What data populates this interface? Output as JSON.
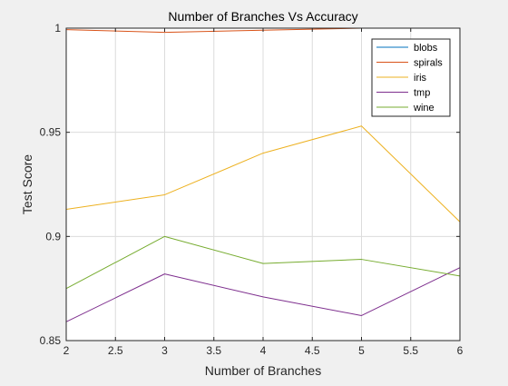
{
  "chart_data": {
    "type": "line",
    "title": "Number of Branches Vs Accuracy",
    "xlabel": "Number of Branches",
    "ylabel": "Test Score",
    "xlim": [
      2,
      6
    ],
    "ylim": [
      0.85,
      1.0
    ],
    "xticks": [
      2,
      2.5,
      3,
      3.5,
      4,
      4.5,
      5,
      5.5,
      6
    ],
    "xtick_labels": [
      "2",
      "2.5",
      "3",
      "3.5",
      "4",
      "4.5",
      "5",
      "5.5",
      "6"
    ],
    "yticks": [
      0.85,
      0.9,
      0.95,
      1.0
    ],
    "ytick_labels": [
      "0.85",
      "0.9",
      "0.95",
      "1"
    ],
    "grid": true,
    "legend_position": "top-right",
    "x": [
      2,
      3,
      4,
      5,
      6
    ],
    "series": [
      {
        "name": "blobs",
        "color": "#0072bd",
        "values": [
          1.0,
          1.0,
          1.0,
          1.0,
          1.0
        ]
      },
      {
        "name": "spirals",
        "color": "#d95319",
        "values": [
          0.9993,
          0.998,
          0.999,
          1.0,
          1.0
        ]
      },
      {
        "name": "iris",
        "color": "#edb120",
        "values": [
          0.913,
          0.92,
          0.94,
          0.953,
          0.907
        ]
      },
      {
        "name": "tmp",
        "color": "#7e2f8e",
        "values": [
          0.859,
          0.882,
          0.871,
          0.862,
          0.885
        ]
      },
      {
        "name": "wine",
        "color": "#77ac30",
        "values": [
          0.875,
          0.9,
          0.887,
          0.889,
          0.881
        ]
      }
    ]
  }
}
